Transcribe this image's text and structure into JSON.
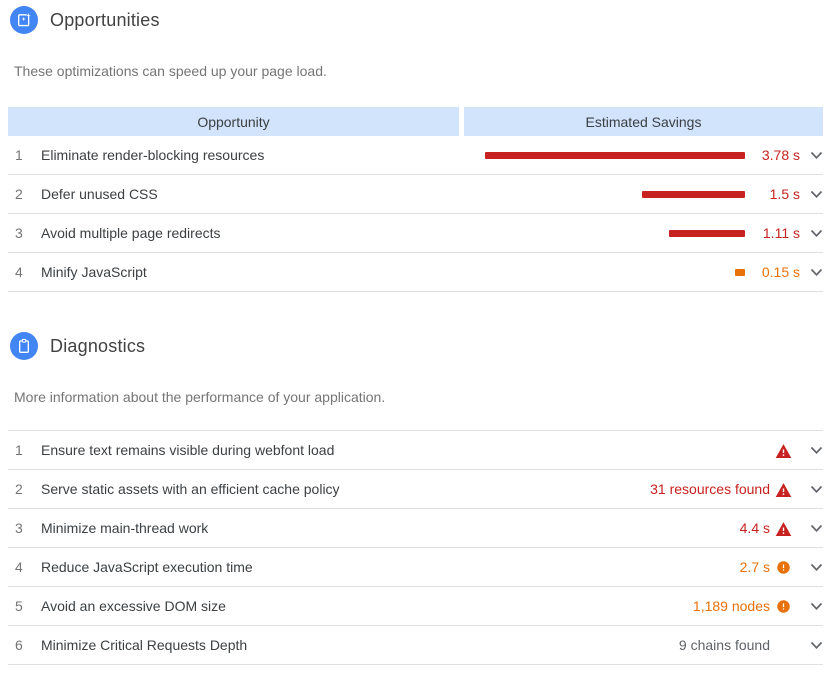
{
  "colors": {
    "red": "#c7221f",
    "orange": "#e8710a",
    "gray": "#5f6368",
    "blue": "#4285f4",
    "header_bg": "#d2e3fc",
    "divider": "#e0e0e0"
  },
  "opportunities": {
    "title": "Opportunities",
    "subtitle": "These optimizations can speed up your page load.",
    "columns": [
      "Opportunity",
      "Estimated Savings"
    ],
    "items": [
      {
        "num": "1",
        "label": "Eliminate render-blocking resources",
        "savings": "3.78 s",
        "savings_seconds": 3.78,
        "severity": "red"
      },
      {
        "num": "2",
        "label": "Defer unused CSS",
        "savings": "1.5 s",
        "savings_seconds": 1.5,
        "severity": "red"
      },
      {
        "num": "3",
        "label": "Avoid multiple page redirects",
        "savings": "1.11 s",
        "savings_seconds": 1.11,
        "severity": "red"
      },
      {
        "num": "4",
        "label": "Minify JavaScript",
        "savings": "0.15 s",
        "savings_seconds": 0.15,
        "severity": "orange"
      }
    ]
  },
  "diagnostics": {
    "title": "Diagnostics",
    "subtitle": "More information about the performance of your application.",
    "items": [
      {
        "num": "1",
        "label": "Ensure text remains visible during webfont load",
        "value": "",
        "value_color": "gray",
        "icon": "warning"
      },
      {
        "num": "2",
        "label": "Serve static assets with an efficient cache policy",
        "value": "31 resources found",
        "value_color": "red",
        "icon": "warning"
      },
      {
        "num": "3",
        "label": "Minimize main-thread work",
        "value": "4.4 s",
        "value_color": "red",
        "icon": "warning"
      },
      {
        "num": "4",
        "label": "Reduce JavaScript execution time",
        "value": "2.7 s",
        "value_color": "orange",
        "icon": "info"
      },
      {
        "num": "5",
        "label": "Avoid an excessive DOM size",
        "value": "1,189 nodes",
        "value_color": "orange",
        "icon": "info"
      },
      {
        "num": "6",
        "label": "Minimize Critical Requests Depth",
        "value": "9 chains found",
        "value_color": "gray",
        "icon": "none"
      }
    ]
  }
}
